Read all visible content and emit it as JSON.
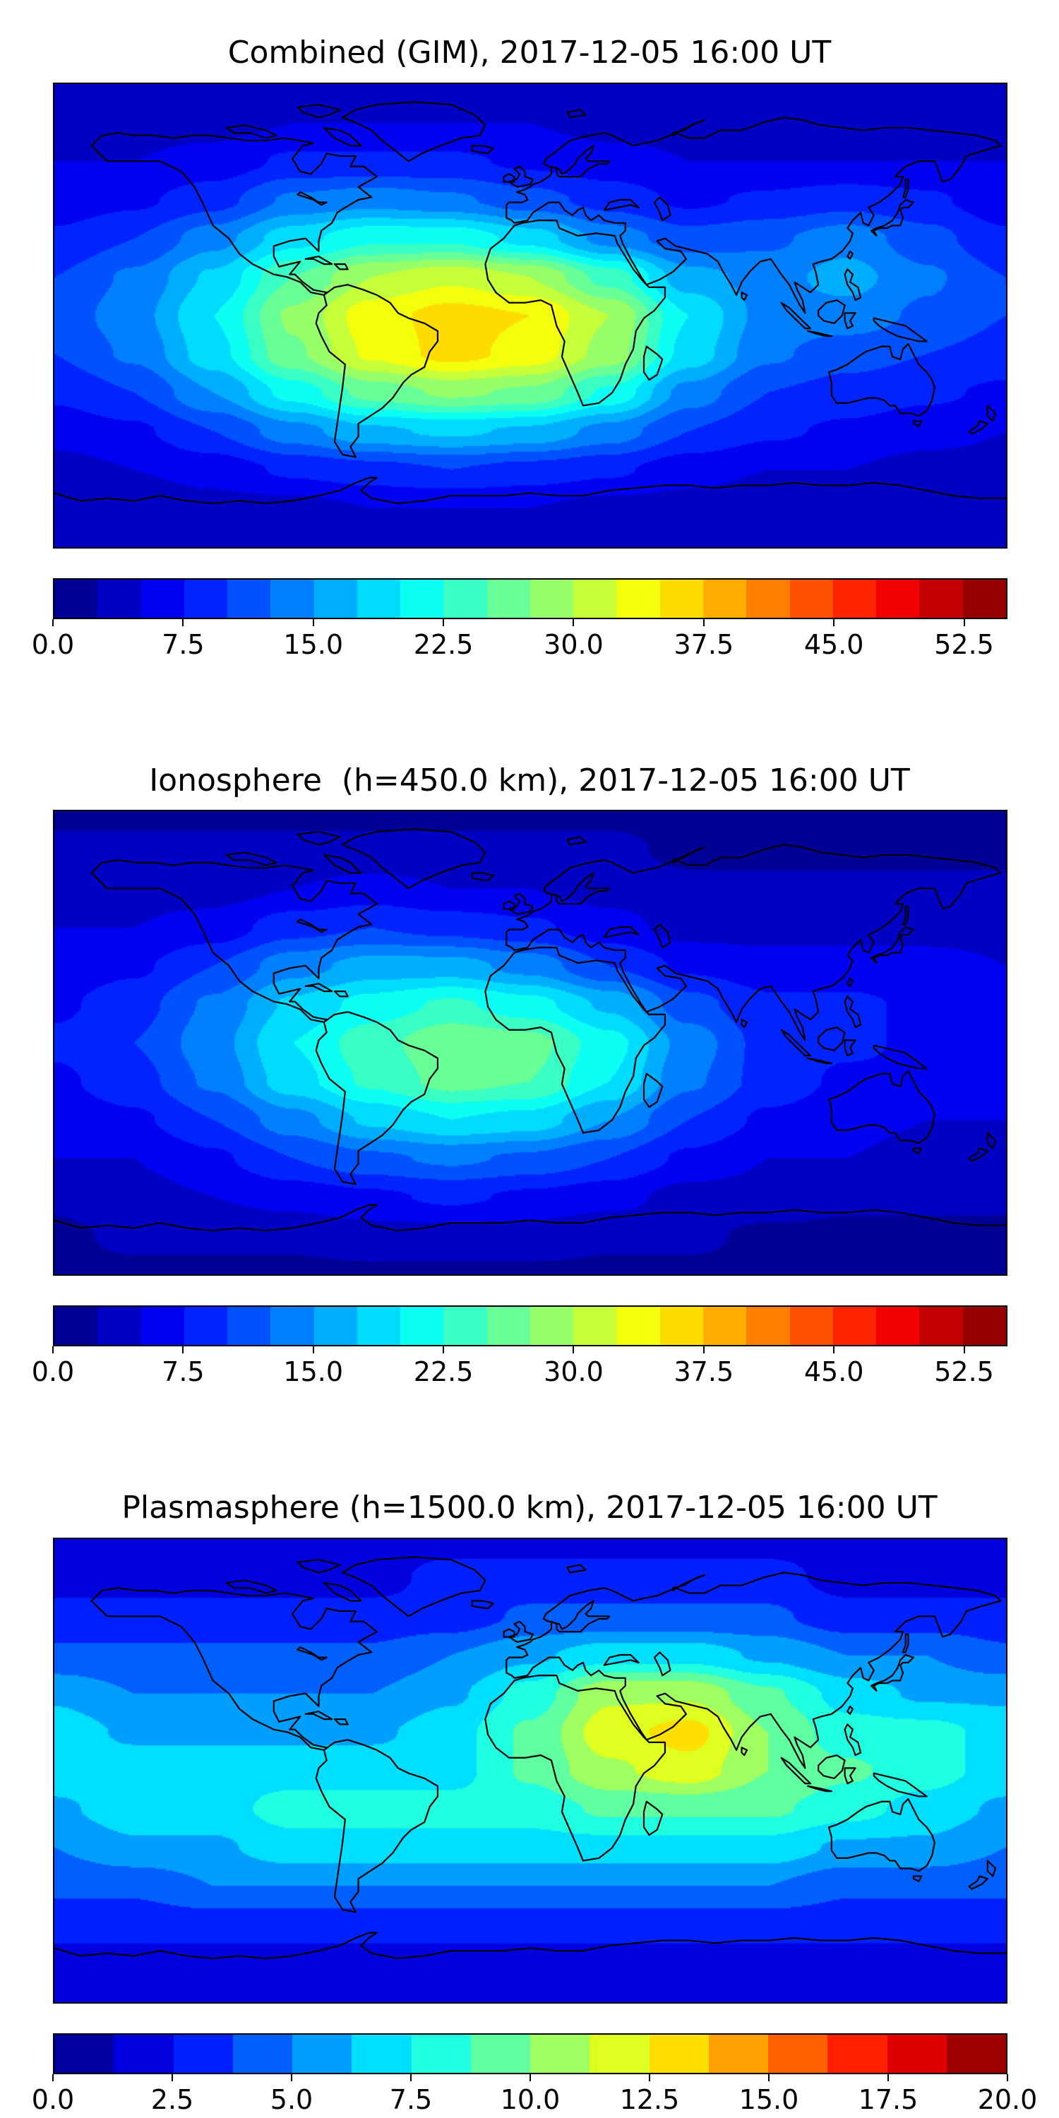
{
  "figure": {
    "background": "#ffffff",
    "colormap": "jet",
    "units": "TECU"
  },
  "chart_data": [
    {
      "type": "heatmap",
      "title": "Combined (GIM), 2017-12-05 16:00 UT",
      "projection": "equirectangular",
      "lon": [
        -180,
        -150,
        -120,
        -90,
        -60,
        -30,
        0,
        30,
        60,
        90,
        120,
        150,
        180
      ],
      "lat": [
        90,
        75,
        60,
        45,
        30,
        15,
        0,
        -15,
        -30,
        -45,
        -60,
        -75,
        -90
      ],
      "values": [
        [
          3,
          3,
          3,
          3,
          3,
          3,
          3,
          3,
          3,
          3,
          3,
          3,
          3
        ],
        [
          4,
          4,
          4,
          5,
          5,
          5,
          5,
          4,
          4,
          4,
          4,
          4,
          4
        ],
        [
          5,
          5,
          6,
          8,
          8,
          8,
          7,
          6,
          5,
          5,
          5,
          5,
          5
        ],
        [
          6,
          7,
          9,
          13,
          14,
          13,
          11,
          9,
          7,
          8,
          9,
          8,
          6
        ],
        [
          8,
          10,
          14,
          19,
          22,
          22,
          19,
          14,
          11,
          12,
          14,
          11,
          8
        ],
        [
          10,
          13,
          18,
          25,
          30,
          32,
          30,
          24,
          16,
          14,
          16,
          13,
          10
        ],
        [
          11,
          14,
          20,
          28,
          34,
          36,
          35,
          30,
          20,
          14,
          14,
          12,
          10
        ],
        [
          10,
          13,
          19,
          27,
          33,
          36,
          34,
          29,
          19,
          13,
          11,
          10,
          9
        ],
        [
          8,
          10,
          15,
          21,
          26,
          28,
          27,
          22,
          14,
          10,
          9,
          8,
          7
        ],
        [
          6,
          7,
          10,
          14,
          17,
          18,
          17,
          14,
          10,
          8,
          7,
          6,
          5
        ],
        [
          4,
          5,
          6,
          8,
          9,
          10,
          9,
          8,
          6,
          5,
          5,
          4,
          4
        ],
        [
          3,
          3,
          4,
          4,
          5,
          5,
          5,
          4,
          4,
          3,
          3,
          3,
          3
        ],
        [
          3,
          3,
          3,
          3,
          3,
          3,
          3,
          3,
          3,
          3,
          3,
          3,
          3
        ]
      ],
      "levels": {
        "min": 0,
        "max": 55,
        "step": 2.5
      },
      "colormap": "jet",
      "colorbar_ticks": [
        0,
        7.5,
        15,
        22.5,
        30,
        37.5,
        45,
        52.5
      ],
      "colorbar_tick_labels": [
        "0.0",
        "7.5",
        "15.0",
        "22.5",
        "30.0",
        "37.5",
        "45.0",
        "52.5"
      ]
    },
    {
      "type": "heatmap",
      "title": "Ionosphere  (h=450.0 km), 2017-12-05 16:00 UT",
      "projection": "equirectangular",
      "lon": [
        -180,
        -150,
        -120,
        -90,
        -60,
        -30,
        0,
        30,
        60,
        90,
        120,
        150,
        180
      ],
      "lat": [
        90,
        75,
        60,
        45,
        30,
        15,
        0,
        -15,
        -30,
        -45,
        -60,
        -75,
        -90
      ],
      "values": [
        [
          2,
          2,
          2,
          2,
          2,
          2,
          2,
          2,
          2,
          2,
          2,
          2,
          2
        ],
        [
          3,
          3,
          3,
          3,
          3,
          3,
          3,
          3,
          2,
          2,
          2,
          2,
          2
        ],
        [
          4,
          4,
          4,
          5,
          6,
          5,
          5,
          4,
          3,
          3,
          3,
          3,
          3
        ],
        [
          5,
          5,
          6,
          9,
          10,
          9,
          8,
          6,
          4,
          4,
          4,
          4,
          4
        ],
        [
          6,
          7,
          10,
          14,
          16,
          16,
          14,
          10,
          7,
          6,
          6,
          6,
          5
        ],
        [
          7,
          9,
          13,
          18,
          21,
          23,
          21,
          17,
          11,
          8,
          8,
          7,
          6
        ],
        [
          8,
          10,
          14,
          20,
          24,
          27,
          26,
          21,
          14,
          9,
          8,
          7,
          7
        ],
        [
          7,
          9,
          13,
          19,
          23,
          26,
          25,
          20,
          13,
          9,
          7,
          7,
          6
        ],
        [
          6,
          7,
          10,
          14,
          18,
          20,
          19,
          15,
          10,
          7,
          6,
          5,
          5
        ],
        [
          5,
          5,
          7,
          10,
          12,
          13,
          12,
          10,
          7,
          5,
          5,
          4,
          4
        ],
        [
          3,
          4,
          5,
          6,
          7,
          8,
          7,
          6,
          4,
          4,
          3,
          3,
          3
        ],
        [
          2,
          3,
          3,
          3,
          4,
          4,
          4,
          3,
          3,
          2,
          2,
          2,
          2
        ],
        [
          2,
          2,
          2,
          2,
          2,
          2,
          2,
          2,
          2,
          2,
          2,
          2,
          2
        ]
      ],
      "levels": {
        "min": 0,
        "max": 55,
        "step": 2.5
      },
      "colormap": "jet",
      "colorbar_ticks": [
        0,
        7.5,
        15,
        22.5,
        30,
        37.5,
        45,
        52.5
      ],
      "colorbar_tick_labels": [
        "0.0",
        "7.5",
        "15.0",
        "22.5",
        "30.0",
        "37.5",
        "45.0",
        "52.5"
      ]
    },
    {
      "type": "heatmap",
      "title": "Plasmasphere (h=1500.0 km), 2017-12-05 16:00 UT",
      "projection": "equirectangular",
      "lon": [
        -180,
        -150,
        -120,
        -90,
        -60,
        -30,
        0,
        30,
        60,
        90,
        120,
        150,
        180
      ],
      "lat": [
        90,
        75,
        60,
        45,
        30,
        15,
        0,
        -15,
        -30,
        -45,
        -60,
        -75,
        -90
      ],
      "values": [
        [
          2,
          2,
          2,
          2,
          2,
          2,
          2,
          2,
          2,
          2,
          2,
          2,
          2
        ],
        [
          2,
          2,
          2,
          2,
          2,
          3,
          3,
          3,
          3,
          3,
          2,
          2,
          2
        ],
        [
          3,
          3,
          3,
          3,
          3,
          3,
          4,
          4,
          4,
          4,
          3,
          3,
          3
        ],
        [
          4,
          4,
          4,
          4,
          4,
          5,
          6,
          7,
          7,
          6,
          5,
          5,
          4
        ],
        [
          6,
          5,
          5,
          5,
          5,
          6,
          8,
          11,
          11,
          9,
          7,
          6,
          6
        ],
        [
          7,
          6,
          6,
          6,
          6,
          7,
          9,
          12,
          13,
          10,
          8,
          8,
          7
        ],
        [
          7,
          7,
          7,
          7,
          7,
          7,
          9,
          11,
          12,
          10,
          9,
          8,
          7
        ],
        [
          6,
          7,
          7,
          8,
          8,
          8,
          8,
          9,
          9,
          9,
          8,
          7,
          6
        ],
        [
          5,
          6,
          6,
          7,
          7,
          7,
          7,
          7,
          7,
          7,
          6,
          6,
          5
        ],
        [
          4,
          4,
          5,
          5,
          5,
          5,
          5,
          5,
          5,
          5,
          4,
          4,
          4
        ],
        [
          3,
          3,
          3,
          3,
          3,
          3,
          3,
          3,
          3,
          3,
          3,
          3,
          3
        ],
        [
          2,
          2,
          2,
          2,
          2,
          2,
          2,
          2,
          2,
          2,
          2,
          2,
          2
        ],
        [
          2,
          2,
          2,
          2,
          2,
          2,
          2,
          2,
          2,
          2,
          2,
          2,
          2
        ]
      ],
      "levels": {
        "min": 0,
        "max": 20,
        "step": 1.25
      },
      "colormap": "jet",
      "colorbar_ticks": [
        0,
        2.5,
        5,
        7.5,
        10,
        12.5,
        15,
        17.5,
        20
      ],
      "colorbar_tick_labels": [
        "0.0",
        "2.5",
        "5.0",
        "7.5",
        "10.0",
        "12.5",
        "15.0",
        "17.5",
        "20.0"
      ]
    }
  ]
}
